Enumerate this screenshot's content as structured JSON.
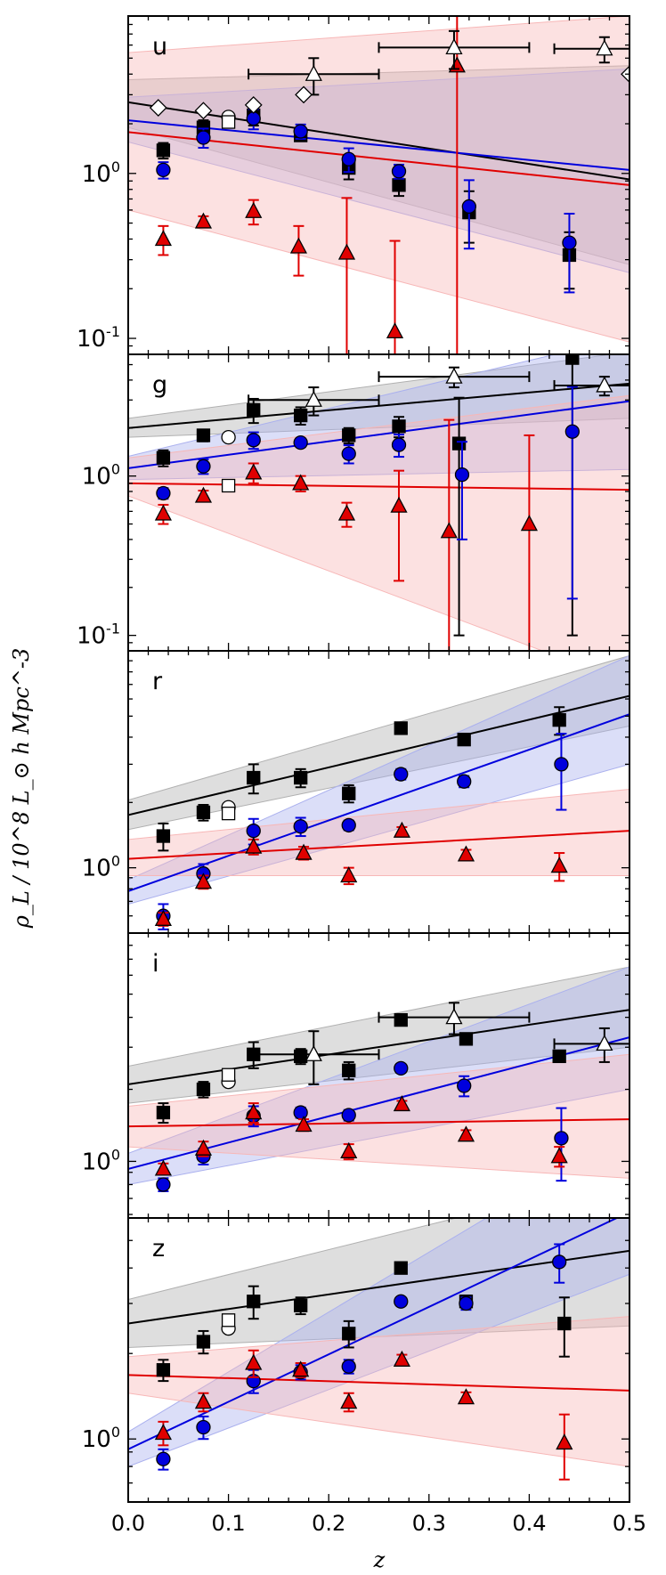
{
  "figure": {
    "ylabel": "ρ_L / 10^8 L_⊙ h Mpc^-3",
    "xlabel": "z",
    "x_ticks": [
      "0.0",
      "0.1",
      "0.2",
      "0.3",
      "0.4",
      "0.5"
    ]
  },
  "colors": {
    "black": "#000000",
    "blue": "#0000dd",
    "red": "#e00000",
    "band_black": "#b0b0b0",
    "band_blue": "#aab0ee",
    "band_red": "#f7b7b7"
  },
  "chart_data": [
    {
      "type": "scatter",
      "panel": "u",
      "yscale": "log",
      "ylim": [
        0.08,
        9.0
      ],
      "xlim": [
        0.0,
        0.5
      ],
      "y_ticks": [
        {
          "v": 0.1,
          "label": "10^-1"
        },
        {
          "v": 1.0,
          "label": "10^0"
        }
      ],
      "series": [
        {
          "color": "black",
          "marker": "square",
          "filled": true,
          "x": [
            0.035,
            0.075,
            0.125,
            0.172,
            0.22,
            0.27,
            0.34,
            0.44
          ],
          "y": [
            1.38,
            1.9,
            2.25,
            1.7,
            1.08,
            0.85,
            0.58,
            0.32
          ],
          "yerr": [
            0.15,
            0.2,
            0.3,
            0.12,
            0.16,
            0.12,
            0.2,
            0.12
          ]
        },
        {
          "color": "blue",
          "marker": "circle",
          "filled": true,
          "x": [
            0.035,
            0.075,
            0.125,
            0.172,
            0.22,
            0.27,
            0.34,
            0.44
          ],
          "y": [
            1.05,
            1.65,
            2.15,
            1.8,
            1.22,
            1.03,
            0.63,
            0.38
          ],
          "yerr": [
            0.12,
            0.22,
            0.3,
            0.18,
            0.2,
            0.1,
            0.28,
            0.19
          ]
        },
        {
          "color": "red",
          "marker": "triangle",
          "filled": true,
          "x": [
            0.035,
            0.075,
            0.125,
            0.17,
            0.218,
            0.266,
            0.328
          ],
          "y": [
            0.4,
            0.51,
            0.59,
            0.36,
            0.33,
            0.11,
            4.5
          ],
          "yerr": [
            0.08,
            0.04,
            0.1,
            0.12,
            0.38,
            0.28,
            9
          ]
        },
        {
          "color": "white",
          "marker": "triangle",
          "filled": false,
          "x": [
            0.185,
            0.325,
            0.475
          ],
          "y": [
            4.0,
            5.8,
            5.7
          ],
          "yerr": [
            1.0,
            1.5,
            1.0
          ],
          "xerr": [
            0.065,
            0.075,
            0.05
          ]
        },
        {
          "color": "white",
          "marker": "diamond",
          "filled": false,
          "x": [
            0.03,
            0.075,
            0.125,
            0.175,
            0.5
          ],
          "y": [
            2.5,
            2.4,
            2.6,
            3.0,
            4.0
          ]
        },
        {
          "color": "white",
          "marker": "circle",
          "filled": false,
          "x": [
            0.1
          ],
          "y": [
            2.2
          ]
        },
        {
          "color": "white",
          "marker": "square",
          "filled": false,
          "x": [
            0.1
          ],
          "y": [
            2.05
          ]
        }
      ],
      "fits": [
        {
          "color": "black",
          "y0": 2.7,
          "y1": 0.92,
          "b0": [
            1.9,
            3.7
          ],
          "b1": [
            0.28,
            4.5
          ]
        },
        {
          "color": "blue",
          "y0": 2.1,
          "y1": 1.05,
          "b0": [
            1.55,
            2.9
          ],
          "b1": [
            0.25,
            4.3
          ]
        },
        {
          "color": "red",
          "y0": 1.78,
          "y1": 0.85,
          "b0": [
            0.6,
            5.4
          ],
          "b1": [
            0.095,
            9.0
          ]
        }
      ]
    },
    {
      "type": "scatter",
      "panel": "g",
      "yscale": "log",
      "ylim": [
        0.08,
        5.8
      ],
      "xlim": [
        0.0,
        0.5
      ],
      "y_ticks": [
        {
          "v": 0.1,
          "label": "10^-1"
        },
        {
          "v": 1.0,
          "label": "10^0"
        }
      ],
      "series": [
        {
          "color": "black",
          "marker": "square",
          "filled": true,
          "x": [
            0.035,
            0.075,
            0.125,
            0.172,
            0.22,
            0.27,
            0.33,
            0.443
          ],
          "y": [
            1.3,
            1.8,
            2.6,
            2.4,
            1.8,
            2.05,
            1.6,
            5.5
          ],
          "yerr": [
            0.15,
            0.15,
            0.45,
            0.3,
            0.2,
            0.3,
            1.5,
            5.4
          ]
        },
        {
          "color": "blue",
          "marker": "circle",
          "filled": true,
          "x": [
            0.035,
            0.075,
            0.125,
            0.172,
            0.22,
            0.27,
            0.333,
            0.443
          ],
          "y": [
            0.78,
            1.15,
            1.68,
            1.62,
            1.38,
            1.57,
            1.02,
            1.9
          ],
          "yerr": [
            0.06,
            0.12,
            0.2,
            0.1,
            0.18,
            0.25,
            0.62,
            1.73
          ]
        },
        {
          "color": "red",
          "marker": "triangle",
          "filled": true,
          "x": [
            0.035,
            0.075,
            0.125,
            0.172,
            0.218,
            0.27,
            0.32,
            0.4
          ],
          "y": [
            0.58,
            0.75,
            1.05,
            0.9,
            0.58,
            0.65,
            0.45,
            0.5
          ],
          "yerr": [
            0.08,
            0.06,
            0.15,
            0.1,
            0.1,
            0.43,
            1.8,
            1.3
          ]
        },
        {
          "color": "white",
          "marker": "triangle",
          "filled": false,
          "x": [
            0.185,
            0.325,
            0.475
          ],
          "y": [
            3.0,
            4.2,
            3.7
          ],
          "yerr": [
            0.6,
            0.6,
            0.5
          ],
          "xerr": [
            0.065,
            0.075,
            0.05
          ]
        },
        {
          "color": "white",
          "marker": "circle",
          "filled": false,
          "x": [
            0.1
          ],
          "y": [
            1.75
          ]
        },
        {
          "color": "white",
          "marker": "square",
          "filled": false,
          "x": [
            0.1
          ],
          "y": [
            0.87
          ]
        }
      ],
      "fits": [
        {
          "color": "black",
          "y0": 2.0,
          "y1": 3.8,
          "b0": [
            1.75,
            2.3
          ],
          "b1": [
            2.3,
            6.0
          ]
        },
        {
          "color": "blue",
          "y0": 1.12,
          "y1": 2.95,
          "b0": [
            0.95,
            1.33
          ],
          "b1": [
            1.1,
            7.5
          ]
        },
        {
          "color": "red",
          "y0": 0.9,
          "y1": 0.82,
          "b0": [
            0.75,
            1.3
          ],
          "b1": [
            0.05,
            3.2
          ]
        }
      ]
    },
    {
      "type": "scatter",
      "panel": "r",
      "yscale": "log",
      "ylim": [
        0.5,
        10.0
      ],
      "xlim": [
        0.0,
        0.5
      ],
      "y_ticks": [
        {
          "v": 1.0,
          "label": "10^0"
        }
      ],
      "series": [
        {
          "color": "black",
          "marker": "square",
          "filled": true,
          "x": [
            0.035,
            0.075,
            0.125,
            0.172,
            0.22,
            0.272,
            0.335,
            0.43
          ],
          "y": [
            1.4,
            1.8,
            2.6,
            2.6,
            2.2,
            4.4,
            3.9,
            4.8
          ],
          "yerr": [
            0.2,
            0.15,
            0.4,
            0.25,
            0.2,
            0.25,
            0.2,
            0.7
          ]
        },
        {
          "color": "blue",
          "marker": "circle",
          "filled": true,
          "x": [
            0.035,
            0.075,
            0.125,
            0.172,
            0.22,
            0.272,
            0.335,
            0.432
          ],
          "y": [
            0.6,
            0.94,
            1.48,
            1.55,
            1.57,
            2.7,
            2.5,
            3.0
          ],
          "yerr": [
            0.08,
            0.1,
            0.2,
            0.15,
            0.08,
            0.15,
            0.15,
            1.15
          ]
        },
        {
          "color": "red",
          "marker": "triangle",
          "filled": true,
          "x": [
            0.035,
            0.075,
            0.125,
            0.175,
            0.22,
            0.273,
            0.337,
            0.43
          ],
          "y": [
            0.58,
            0.86,
            1.25,
            1.17,
            0.92,
            1.48,
            1.15,
            1.02
          ],
          "yerr": [
            0.04,
            0.06,
            0.1,
            0.08,
            0.08,
            0.06,
            0.06,
            0.15
          ]
        },
        {
          "color": "white",
          "marker": "circle",
          "filled": false,
          "x": [
            0.1
          ],
          "y": [
            1.9
          ]
        },
        {
          "color": "white",
          "marker": "square",
          "filled": false,
          "x": [
            0.1
          ],
          "y": [
            1.78
          ]
        }
      ],
      "fits": [
        {
          "color": "black",
          "y0": 1.75,
          "y1": 6.2,
          "b0": [
            1.5,
            2.05
          ],
          "b1": [
            4.5,
            9.5
          ]
        },
        {
          "color": "blue",
          "y0": 0.78,
          "y1": 5.1,
          "b0": [
            0.68,
            0.88
          ],
          "b1": [
            3.0,
            9.5
          ]
        },
        {
          "color": "red",
          "y0": 1.1,
          "y1": 1.48,
          "b0": [
            0.92,
            1.35
          ],
          "b1": [
            0.92,
            2.3
          ]
        }
      ]
    },
    {
      "type": "scatter",
      "panel": "i",
      "yscale": "log",
      "ylim": [
        0.58,
        9.0
      ],
      "xlim": [
        0.0,
        0.5
      ],
      "y_ticks": [
        {
          "v": 1.0,
          "label": "10^0"
        }
      ],
      "series": [
        {
          "color": "black",
          "marker": "square",
          "filled": true,
          "x": [
            0.035,
            0.075,
            0.125,
            0.172,
            0.22,
            0.272,
            0.337,
            0.43
          ],
          "y": [
            1.6,
            2.0,
            2.8,
            2.75,
            2.4,
            3.9,
            3.25,
            2.75
          ],
          "yerr": [
            0.15,
            0.15,
            0.35,
            0.2,
            0.2,
            0.1,
            0.1,
            0.15
          ]
        },
        {
          "color": "blue",
          "marker": "circle",
          "filled": true,
          "x": [
            0.035,
            0.075,
            0.125,
            0.172,
            0.22,
            0.272,
            0.335,
            0.432
          ],
          "y": [
            0.8,
            1.05,
            1.55,
            1.6,
            1.56,
            2.45,
            2.07,
            1.25
          ],
          "yerr": [
            0.05,
            0.08,
            0.15,
            0.08,
            0.08,
            0.1,
            0.2,
            0.42
          ]
        },
        {
          "color": "red",
          "marker": "triangle",
          "filled": true,
          "x": [
            0.035,
            0.075,
            0.125,
            0.175,
            0.22,
            0.273,
            0.337,
            0.43
          ],
          "y": [
            0.93,
            1.13,
            1.6,
            1.42,
            1.1,
            1.73,
            1.29,
            1.05
          ],
          "yerr": [
            0.05,
            0.08,
            0.15,
            0.08,
            0.08,
            0.06,
            0.06,
            0.1
          ]
        },
        {
          "color": "white",
          "marker": "triangle",
          "filled": false,
          "x": [
            0.185,
            0.325,
            0.475
          ],
          "y": [
            2.8,
            4.0,
            3.1
          ],
          "yerr": [
            0.7,
            0.6,
            0.5
          ],
          "xerr": [
            0.065,
            0.075,
            0.05
          ]
        },
        {
          "color": "white",
          "marker": "circle",
          "filled": false,
          "x": [
            0.1
          ],
          "y": [
            2.15
          ]
        },
        {
          "color": "white",
          "marker": "square",
          "filled": false,
          "x": [
            0.1
          ],
          "y": [
            2.3
          ]
        }
      ],
      "fits": [
        {
          "color": "black",
          "y0": 2.1,
          "y1": 4.3,
          "b0": [
            1.75,
            2.5
          ],
          "b1": [
            3.0,
            6.5
          ]
        },
        {
          "color": "blue",
          "y0": 0.93,
          "y1": 3.3,
          "b0": [
            0.8,
            1.08
          ],
          "b1": [
            2.0,
            6.5
          ]
        },
        {
          "color": "red",
          "y0": 1.4,
          "y1": 1.5,
          "b0": [
            1.15,
            1.7
          ],
          "b1": [
            0.85,
            2.8
          ]
        }
      ]
    },
    {
      "type": "scatter",
      "panel": "z",
      "yscale": "log",
      "ylim": [
        0.6,
        6.0
      ],
      "xlim": [
        0.0,
        0.5
      ],
      "y_ticks": [
        {
          "v": 1.0,
          "label": "10^0"
        }
      ],
      "series": [
        {
          "color": "black",
          "marker": "square",
          "filled": true,
          "x": [
            0.035,
            0.075,
            0.125,
            0.172,
            0.22,
            0.272,
            0.337,
            0.435
          ],
          "y": [
            1.75,
            2.2,
            3.05,
            2.95,
            2.35,
            4.0,
            3.05,
            2.55
          ],
          "yerr": [
            0.15,
            0.2,
            0.4,
            0.2,
            0.25,
            0.15,
            0.15,
            0.6
          ]
        },
        {
          "color": "blue",
          "marker": "circle",
          "filled": true,
          "x": [
            0.035,
            0.075,
            0.125,
            0.172,
            0.22,
            0.272,
            0.337,
            0.43
          ],
          "y": [
            0.85,
            1.1,
            1.6,
            1.72,
            1.8,
            3.05,
            3.0,
            4.2
          ],
          "yerr": [
            0.07,
            0.1,
            0.15,
            0.1,
            0.1,
            0.1,
            0.15,
            0.65
          ]
        },
        {
          "color": "red",
          "marker": "triangle",
          "filled": true,
          "x": [
            0.035,
            0.075,
            0.125,
            0.172,
            0.22,
            0.273,
            0.337,
            0.435
          ],
          "y": [
            1.05,
            1.35,
            1.85,
            1.75,
            1.35,
            1.9,
            1.4,
            0.97
          ],
          "yerr": [
            0.1,
            0.1,
            0.2,
            0.1,
            0.1,
            0.08,
            0.06,
            0.25
          ]
        },
        {
          "color": "white",
          "marker": "circle",
          "filled": false,
          "x": [
            0.1
          ],
          "y": [
            2.45
          ]
        },
        {
          "color": "white",
          "marker": "square",
          "filled": false,
          "x": [
            0.1
          ],
          "y": [
            2.62
          ]
        }
      ],
      "fits": [
        {
          "color": "black",
          "y0": 2.55,
          "y1": 4.6,
          "b0": [
            2.1,
            3.1
          ],
          "b1": [
            2.5,
            8.5
          ]
        },
        {
          "color": "blue",
          "y0": 0.92,
          "y1": 6.3,
          "b0": [
            0.8,
            1.06
          ],
          "b1": [
            3.8,
            12
          ]
        },
        {
          "color": "red",
          "y0": 1.68,
          "y1": 1.48,
          "b0": [
            1.45,
            1.95
          ],
          "b1": [
            0.8,
            2.7
          ]
        }
      ]
    }
  ]
}
